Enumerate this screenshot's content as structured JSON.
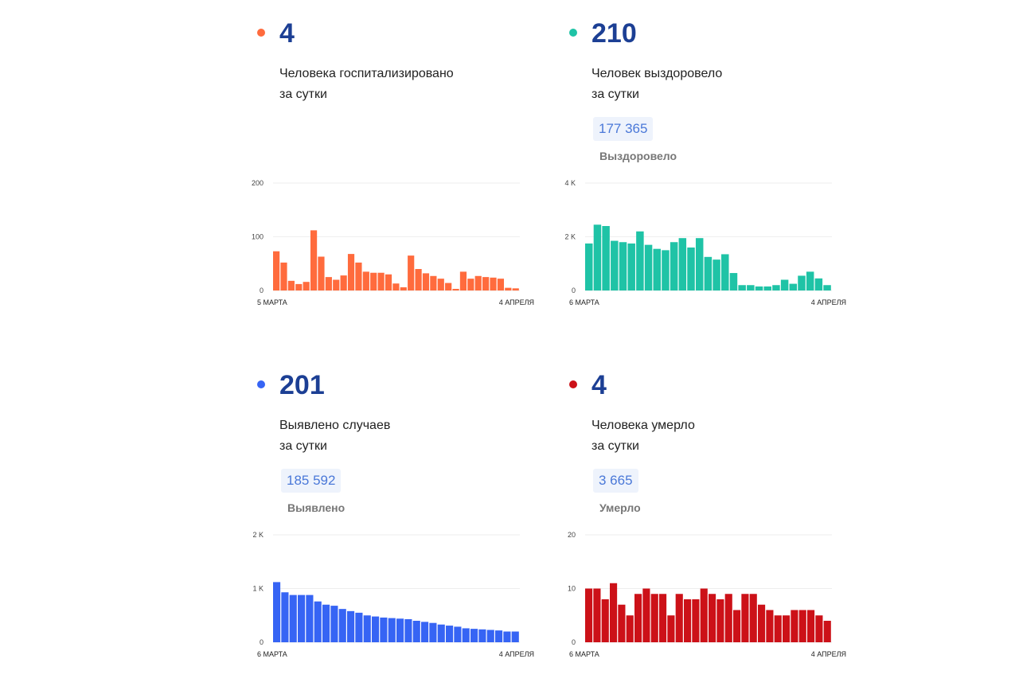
{
  "panels": [
    {
      "id": "hosp",
      "color": "#ff6b3d",
      "value": "4",
      "label_line1": "Человека госпитализировано",
      "label_line2": "за сутки",
      "total": "",
      "total_label": ""
    },
    {
      "id": "recov",
      "color": "#1fc3a6",
      "value": "210",
      "label_line1": "Человек выздоровело",
      "label_line2": "за сутки",
      "total": "177 365",
      "total_label": "Выздоровело"
    },
    {
      "id": "cases",
      "color": "#3664f4",
      "value": "201",
      "label_line1": "Выявлено случаев",
      "label_line2": "за сутки",
      "total": "185 592",
      "total_label": "Выявлено"
    },
    {
      "id": "deaths",
      "color": "#cc1118",
      "value": "4",
      "label_line1": "Человека умерло",
      "label_line2": "за сутки",
      "total": "3 665",
      "total_label": "Умерло"
    }
  ],
  "chart_data": [
    {
      "type": "bar",
      "ylim": [
        0,
        200
      ],
      "yticks": [
        "200",
        "100",
        "0"
      ],
      "x_start": "5 МАРТА",
      "x_end": "4 АПРЕЛЯ",
      "values": [
        73,
        52,
        18,
        12,
        16,
        112,
        63,
        25,
        20,
        28,
        68,
        52,
        35,
        33,
        33,
        30,
        13,
        6,
        65,
        40,
        32,
        27,
        22,
        14,
        3,
        35,
        22,
        27,
        25,
        24,
        22,
        5,
        4
      ]
    },
    {
      "type": "bar",
      "ylim": [
        0,
        4000
      ],
      "yticks": [
        "4 K",
        "2 K",
        "0"
      ],
      "x_start": "6 МАРТА",
      "x_end": "4 АПРЕЛЯ",
      "values": [
        1750,
        2450,
        2400,
        1850,
        1800,
        1750,
        2200,
        1700,
        1550,
        1500,
        1800,
        1950,
        1600,
        1950,
        1250,
        1150,
        1350,
        650,
        200,
        200,
        150,
        150,
        200,
        400,
        250,
        550,
        700,
        450,
        200
      ]
    },
    {
      "type": "bar",
      "ylim": [
        0,
        2000
      ],
      "yticks": [
        "2 K",
        "1 K",
        "0"
      ],
      "x_start": "6 МАРТА",
      "x_end": "4 АПРЕЛЯ",
      "values": [
        1120,
        930,
        880,
        880,
        880,
        760,
        700,
        680,
        620,
        580,
        550,
        500,
        480,
        460,
        450,
        440,
        430,
        400,
        380,
        360,
        330,
        310,
        290,
        260,
        250,
        240,
        230,
        220,
        200,
        200
      ]
    },
    {
      "type": "bar",
      "ylim": [
        0,
        20
      ],
      "yticks": [
        "20",
        "10",
        "0"
      ],
      "x_start": "6 МАРТА",
      "x_end": "4 АПРЕЛЯ",
      "values": [
        10,
        10,
        8,
        11,
        7,
        5,
        9,
        10,
        9,
        9,
        5,
        9,
        8,
        8,
        10,
        9,
        8,
        9,
        6,
        9,
        9,
        7,
        6,
        5,
        5,
        6,
        6,
        6,
        5,
        4
      ]
    }
  ]
}
